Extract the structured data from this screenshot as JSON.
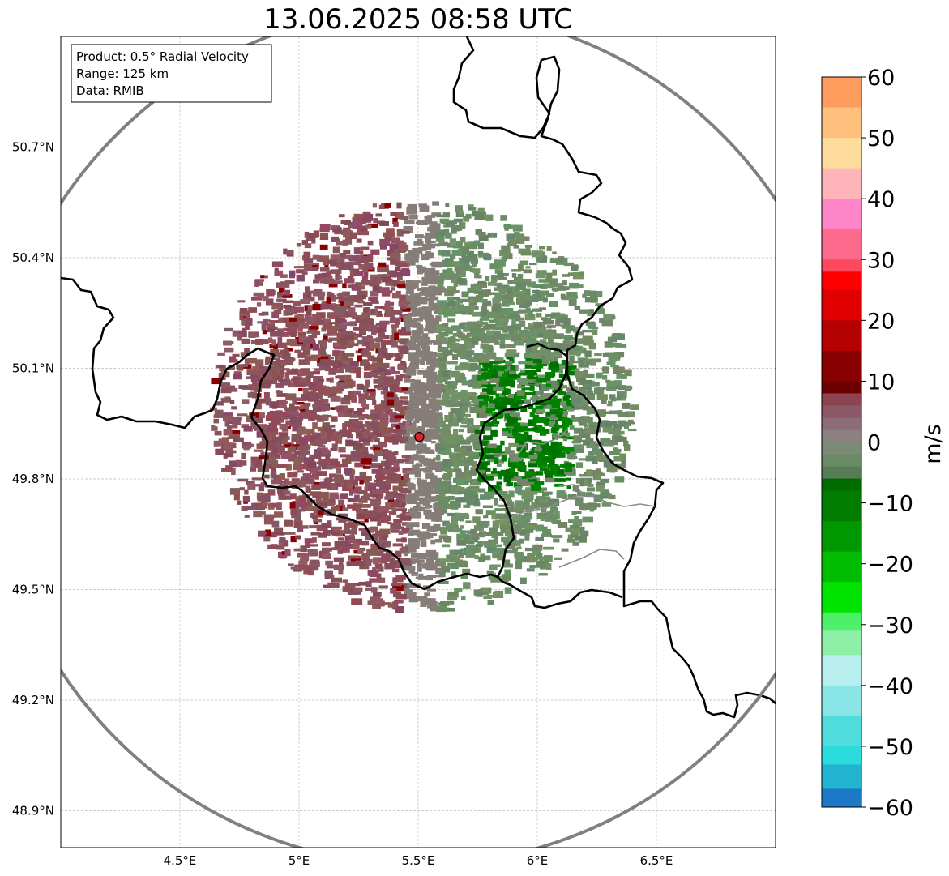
{
  "title": "13.06.2025 08:58 UTC",
  "info_box": {
    "lines": [
      "Product: 0.5° Radial Velocity",
      "Range: 125 km",
      "Data: RMIB"
    ]
  },
  "colorbar": {
    "unit": "m/s",
    "min": -60,
    "max": 60,
    "tick_values": [
      60,
      50,
      40,
      30,
      20,
      10,
      0,
      -10,
      -20,
      -30,
      -40,
      -50,
      -60
    ],
    "tick_labels": [
      "60",
      "50",
      "40",
      "30",
      "20",
      "10",
      "0",
      "−10",
      "−20",
      "−30",
      "−40",
      "−50",
      "−60"
    ],
    "bands": [
      {
        "from": 55,
        "to": 60,
        "color": "#fe9c5d"
      },
      {
        "from": 50,
        "to": 55,
        "color": "#fec07c"
      },
      {
        "from": 45,
        "to": 50,
        "color": "#fedc9c"
      },
      {
        "from": 40,
        "to": 45,
        "color": "#feb4b8"
      },
      {
        "from": 35,
        "to": 40,
        "color": "#fe86c8"
      },
      {
        "from": 30,
        "to": 35,
        "color": "#fe6a8c"
      },
      {
        "from": 28,
        "to": 30,
        "color": "#fe4860"
      },
      {
        "from": 25,
        "to": 28,
        "color": "#fe0000"
      },
      {
        "from": 20,
        "to": 25,
        "color": "#e00000"
      },
      {
        "from": 15,
        "to": 20,
        "color": "#b40000"
      },
      {
        "from": 10,
        "to": 15,
        "color": "#880000"
      },
      {
        "from": 8,
        "to": 10,
        "color": "#6c0000"
      },
      {
        "from": 6,
        "to": 8,
        "color": "#8c4450"
      },
      {
        "from": 4,
        "to": 6,
        "color": "#8c5868"
      },
      {
        "from": 2,
        "to": 4,
        "color": "#8c6c78"
      },
      {
        "from": 0,
        "to": 2,
        "color": "#8c8080"
      },
      {
        "from": -2,
        "to": 0,
        "color": "#7a8a76"
      },
      {
        "from": -4,
        "to": -2,
        "color": "#6a8a66"
      },
      {
        "from": -6,
        "to": -4,
        "color": "#587c56"
      },
      {
        "from": -8,
        "to": -6,
        "color": "#006c00"
      },
      {
        "from": -13,
        "to": -8,
        "color": "#007c00"
      },
      {
        "from": -18,
        "to": -13,
        "color": "#009800"
      },
      {
        "from": -23,
        "to": -18,
        "color": "#00bc00"
      },
      {
        "from": -28,
        "to": -23,
        "color": "#00e400"
      },
      {
        "from": -31,
        "to": -28,
        "color": "#4ef06a"
      },
      {
        "from": -35,
        "to": -31,
        "color": "#8ef0a6"
      },
      {
        "from": -40,
        "to": -35,
        "color": "#b8eeee"
      },
      {
        "from": -45,
        "to": -40,
        "color": "#8ae6e6"
      },
      {
        "from": -50,
        "to": -45,
        "color": "#4edcdc"
      },
      {
        "from": -53,
        "to": -50,
        "color": "#2cdcdc"
      },
      {
        "from": -57,
        "to": -53,
        "color": "#22b4d0"
      },
      {
        "from": -60,
        "to": -57,
        "color": "#1e78c8"
      }
    ]
  },
  "axes": {
    "lon_range": [
      4.0,
      7.0
    ],
    "lat_range": [
      48.8,
      51.0
    ],
    "x_ticks": [
      4.5,
      5.0,
      5.5,
      6.0,
      6.5
    ],
    "x_tick_labels": [
      "4.5°E",
      "5°E",
      "5.5°E",
      "6°E",
      "6.5°E"
    ],
    "y_ticks": [
      48.9,
      49.2,
      49.5,
      49.8,
      50.1,
      50.4,
      50.7
    ],
    "y_tick_labels": [
      "48.9°N",
      "49.2°N",
      "49.5°N",
      "49.8°N",
      "50.1°N",
      "50.4°N",
      "50.7°N"
    ]
  },
  "radar": {
    "site_lon": 5.505,
    "site_lat": 49.914,
    "site_color": "#e8202a",
    "range_ring_color": "#808080"
  },
  "colors": {
    "receding": "#8a5560",
    "approaching": "#6a8a62",
    "strong_approaching": "#007a00",
    "border": "#000000",
    "internal_border": "#8a8a8a",
    "grid": "#bdbdbd"
  }
}
